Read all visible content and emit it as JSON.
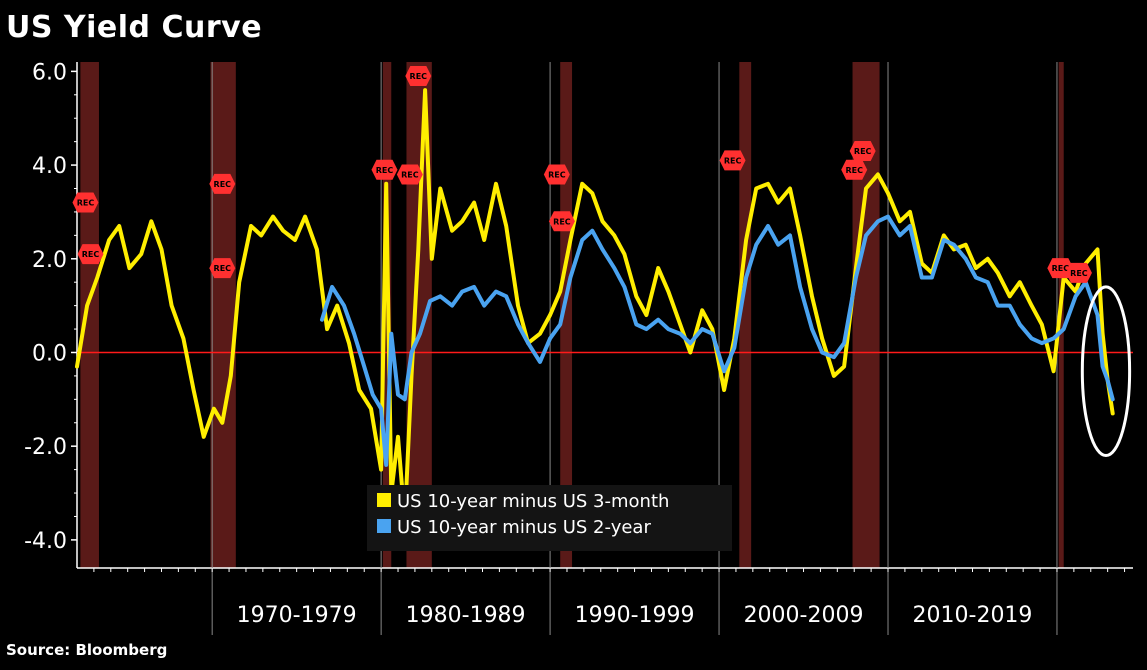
{
  "title": "US Yield Curve",
  "source": "Source: Bloomberg",
  "colors": {
    "background": "#000000",
    "series_3m": "#ffee00",
    "series_2y": "#4aa3f0",
    "zero_line": "#ff1a1a",
    "recession_band": "#5a1a18",
    "rec_marker": "#ff3030"
  },
  "chart_data": {
    "type": "line",
    "title": "US Yield Curve",
    "xlabel": "",
    "ylabel": "",
    "ylim": [
      -4.6,
      6.2
    ],
    "xlim": [
      1962.0,
      2024.5
    ],
    "yticks": [
      6.0,
      4.0,
      2.0,
      0.0,
      -2.0,
      -4.0
    ],
    "ytick_labels": [
      "6.0",
      "4.0",
      "2.0",
      "0.0",
      "-2.0",
      "-4.0"
    ],
    "decade_labels": [
      {
        "label": "1970-1979",
        "x": 1970
      },
      {
        "label": "1980-1989",
        "x": 1980
      },
      {
        "label": "1990-1999",
        "x": 1990
      },
      {
        "label": "2000-2009",
        "x": 2000
      },
      {
        "label": "2010-2019",
        "x": 2010
      }
    ],
    "decade_dividers": [
      1970,
      1980,
      1990,
      2000,
      2010,
      2020
    ],
    "grid": false,
    "legend_position": "bottom-center",
    "recessions": [
      {
        "start": 1962.2,
        "end": 1963.3
      },
      {
        "start": 1969.9,
        "end": 1971.4
      },
      {
        "start": 1980.1,
        "end": 1980.6
      },
      {
        "start": 1981.5,
        "end": 1983.0
      },
      {
        "start": 1990.6,
        "end": 1991.3
      },
      {
        "start": 2001.2,
        "end": 2001.9
      },
      {
        "start": 2007.9,
        "end": 2009.5
      },
      {
        "start": 2020.1,
        "end": 2020.4
      }
    ],
    "rec_markers": [
      {
        "label": "REC",
        "x": 1962.5,
        "y": 3.2
      },
      {
        "label": "REC",
        "x": 1962.8,
        "y": 2.1
      },
      {
        "label": "REC",
        "x": 1970.6,
        "y": 3.6
      },
      {
        "label": "REC",
        "x": 1970.6,
        "y": 1.8
      },
      {
        "label": "REC",
        "x": 1980.2,
        "y": 3.9
      },
      {
        "label": "REC",
        "x": 1981.7,
        "y": 3.8
      },
      {
        "label": "REC",
        "x": 1982.2,
        "y": 5.9
      },
      {
        "label": "REC",
        "x": 1990.4,
        "y": 3.8
      },
      {
        "label": "REC",
        "x": 1990.7,
        "y": 2.8
      },
      {
        "label": "REC",
        "x": 2000.8,
        "y": 4.1
      },
      {
        "label": "REC",
        "x": 2008.5,
        "y": 4.3
      },
      {
        "label": "REC",
        "x": 2008.0,
        "y": 3.9
      },
      {
        "label": "REC",
        "x": 2020.2,
        "y": 1.8
      },
      {
        "label": "REC",
        "x": 2021.3,
        "y": 1.7
      }
    ],
    "highlight_ellipse": {
      "cx": 2022.9,
      "cy": -0.4,
      "rx": 1.4,
      "ry": 1.8
    },
    "series": [
      {
        "name": "US 10-year minus US 3-month",
        "color": "#ffee00",
        "x": [
          1962.0,
          1962.6,
          1963.2,
          1963.9,
          1964.5,
          1965.1,
          1965.8,
          1966.4,
          1967.0,
          1967.6,
          1968.3,
          1968.9,
          1969.5,
          1970.1,
          1970.6,
          1971.1,
          1971.6,
          1972.3,
          1972.9,
          1973.6,
          1974.2,
          1974.9,
          1975.5,
          1976.2,
          1976.8,
          1977.4,
          1978.1,
          1978.7,
          1979.4,
          1980.0,
          1980.3,
          1980.6,
          1981.0,
          1981.4,
          1981.8,
          1982.2,
          1982.6,
          1983.0,
          1983.5,
          1984.2,
          1984.8,
          1985.5,
          1986.1,
          1986.8,
          1987.4,
          1988.1,
          1988.7,
          1989.4,
          1990.0,
          1990.6,
          1991.2,
          1991.9,
          1992.5,
          1993.1,
          1993.8,
          1994.4,
          1995.1,
          1995.7,
          1996.4,
          1997.0,
          1997.7,
          1998.3,
          1999.0,
          1999.6,
          2000.3,
          2000.9,
          2001.6,
          2002.2,
          2002.9,
          2003.5,
          2004.2,
          2004.8,
          2005.5,
          2006.1,
          2006.8,
          2007.4,
          2008.1,
          2008.7,
          2009.4,
          2010.0,
          2010.7,
          2011.3,
          2012.0,
          2012.6,
          2013.3,
          2013.9,
          2014.6,
          2015.2,
          2015.9,
          2016.5,
          2017.2,
          2017.8,
          2018.5,
          2019.1,
          2019.8,
          2020.4,
          2021.1,
          2021.7,
          2022.4,
          2022.7,
          2023.0,
          2023.3
        ],
        "y": [
          -0.3,
          1.0,
          1.6,
          2.4,
          2.7,
          1.8,
          2.1,
          2.8,
          2.2,
          1.0,
          0.3,
          -0.8,
          -1.8,
          -1.2,
          -1.5,
          -0.5,
          1.5,
          2.7,
          2.5,
          2.9,
          2.6,
          2.4,
          2.9,
          2.2,
          0.5,
          1.0,
          0.2,
          -0.8,
          -1.2,
          -2.5,
          3.6,
          -3.0,
          -1.8,
          -3.6,
          -0.5,
          2.2,
          5.6,
          2.0,
          3.5,
          2.6,
          2.8,
          3.2,
          2.4,
          3.6,
          2.7,
          1.0,
          0.2,
          0.4,
          0.8,
          1.3,
          2.4,
          3.6,
          3.4,
          2.8,
          2.5,
          2.1,
          1.2,
          0.8,
          1.8,
          1.3,
          0.6,
          0.0,
          0.9,
          0.5,
          -0.8,
          0.3,
          2.4,
          3.5,
          3.6,
          3.2,
          3.5,
          2.5,
          1.2,
          0.3,
          -0.5,
          -0.3,
          1.8,
          3.5,
          3.8,
          3.4,
          2.8,
          3.0,
          1.9,
          1.7,
          2.5,
          2.2,
          2.3,
          1.8,
          2.0,
          1.7,
          1.2,
          1.5,
          1.0,
          0.6,
          -0.4,
          1.6,
          1.3,
          1.9,
          2.2,
          0.4,
          -0.6,
          -1.3
        ]
      },
      {
        "name": "US 10-year minus US 2-year",
        "color": "#4aa3f0",
        "x": [
          1976.5,
          1977.1,
          1977.8,
          1978.4,
          1979.0,
          1979.5,
          1980.0,
          1980.3,
          1980.6,
          1981.0,
          1981.4,
          1981.8,
          1982.3,
          1982.9,
          1983.5,
          1984.2,
          1984.8,
          1985.5,
          1986.1,
          1986.8,
          1987.4,
          1988.1,
          1988.7,
          1989.4,
          1990.0,
          1990.6,
          1991.2,
          1991.9,
          1992.5,
          1993.1,
          1993.8,
          1994.4,
          1995.1,
          1995.7,
          1996.4,
          1997.0,
          1997.7,
          1998.3,
          1999.0,
          1999.6,
          2000.3,
          2000.9,
          2001.6,
          2002.2,
          2002.9,
          2003.5,
          2004.2,
          2004.8,
          2005.5,
          2006.1,
          2006.8,
          2007.4,
          2008.1,
          2008.7,
          2009.4,
          2010.0,
          2010.7,
          2011.3,
          2012.0,
          2012.6,
          2013.3,
          2013.9,
          2014.6,
          2015.2,
          2015.9,
          2016.5,
          2017.2,
          2017.8,
          2018.5,
          2019.1,
          2019.8,
          2020.4,
          2021.1,
          2021.7,
          2022.4,
          2022.7,
          2023.0,
          2023.3
        ],
        "y": [
          0.7,
          1.4,
          1.0,
          0.4,
          -0.3,
          -0.9,
          -1.2,
          -2.4,
          0.4,
          -0.9,
          -1.0,
          0.0,
          0.4,
          1.1,
          1.2,
          1.0,
          1.3,
          1.4,
          1.0,
          1.3,
          1.2,
          0.6,
          0.2,
          -0.2,
          0.3,
          0.6,
          1.6,
          2.4,
          2.6,
          2.2,
          1.8,
          1.4,
          0.6,
          0.5,
          0.7,
          0.5,
          0.4,
          0.2,
          0.5,
          0.4,
          -0.4,
          0.1,
          1.6,
          2.3,
          2.7,
          2.3,
          2.5,
          1.4,
          0.5,
          0.0,
          -0.1,
          0.2,
          1.6,
          2.5,
          2.8,
          2.9,
          2.5,
          2.7,
          1.6,
          1.6,
          2.4,
          2.3,
          2.0,
          1.6,
          1.5,
          1.0,
          1.0,
          0.6,
          0.3,
          0.2,
          0.3,
          0.5,
          1.2,
          1.5,
          0.8,
          -0.3,
          -0.6,
          -1.0
        ]
      }
    ]
  }
}
